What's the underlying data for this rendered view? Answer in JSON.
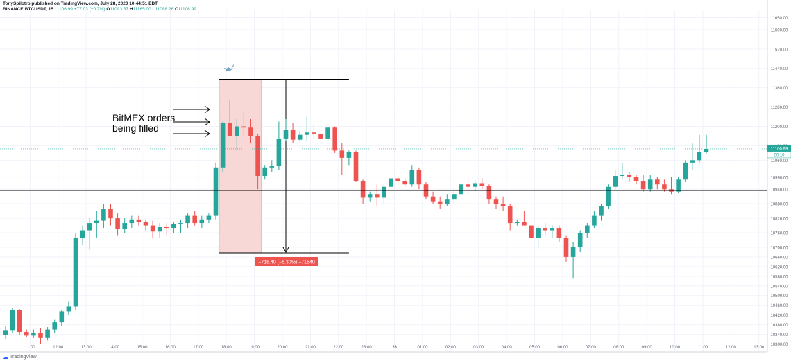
{
  "header": {
    "published": "TonySpilotro published on TradingView.com, July 28, 2020 10:44:51 EDT",
    "symbol": "BINANCE:BTCUSDT, 15",
    "last": "11106.99",
    "change": "+77.03 (+0.7%)",
    "ohlc": {
      "O": "11093.37",
      "H": "11165.00",
      "L": "11088.26",
      "C": "11106.99"
    }
  },
  "annotation": {
    "line1": "BitMEX orders",
    "line2": "being filled"
  },
  "measure_label": "−718.40 (−6.30%) −71840",
  "price_tag": {
    "price": "11106.99",
    "timer": "00:10"
  },
  "footer": {
    "brand": "TradingView"
  },
  "colors": {
    "up": "#26a69a",
    "down": "#ef5350",
    "range_fill": "#f8d7d7",
    "grid": "#f0f3fa",
    "axis_text": "#5d606b"
  },
  "chart_data": {
    "type": "candlestick",
    "ylim": [
      10270,
      11680
    ],
    "y_ticks": [
      10300,
      10340,
      10380,
      10420,
      10460,
      10500,
      10540,
      10580,
      10620,
      10660,
      10700,
      10760,
      10820,
      10880,
      10940,
      10990,
      11060,
      11120,
      11200,
      11280,
      11360,
      11440,
      11520,
      11600,
      11650
    ],
    "x_ticks": [
      {
        "label": "11:00",
        "idx": 3.5
      },
      {
        "label": "12:00",
        "idx": 7.5
      },
      {
        "label": "13:00",
        "idx": 11.5
      },
      {
        "label": "14:00",
        "idx": 15.5
      },
      {
        "label": "15:00",
        "idx": 19.5
      },
      {
        "label": "16:00",
        "idx": 23.5
      },
      {
        "label": "17:00",
        "idx": 27.5
      },
      {
        "label": "18:00",
        "idx": 31.5
      },
      {
        "label": "19:00",
        "idx": 35.5
      },
      {
        "label": "20:00",
        "idx": 39.5
      },
      {
        "label": "21:00",
        "idx": 43.5
      },
      {
        "label": "22:00",
        "idx": 47.5
      },
      {
        "label": "23:00",
        "idx": 51.5
      },
      {
        "label": "28",
        "idx": 55.5
      },
      {
        "label": "01:00",
        "idx": 59.5
      },
      {
        "label": "02:00",
        "idx": 63.5
      },
      {
        "label": "03:00",
        "idx": 67.5
      },
      {
        "label": "04:00",
        "idx": 71.5
      },
      {
        "label": "05:00",
        "idx": 75.5
      },
      {
        "label": "06:00",
        "idx": 79.5
      },
      {
        "label": "07:00",
        "idx": 83.5
      },
      {
        "label": "08:00",
        "idx": 87.5
      },
      {
        "label": "09:00",
        "idx": 91.5
      },
      {
        "label": "10:00",
        "idx": 95.5
      },
      {
        "label": "11:00",
        "idx": 99.5
      },
      {
        "label": "12:00",
        "idx": 103.5
      },
      {
        "label": "13:00",
        "idx": 107.5
      }
    ],
    "horizontal_line": 10935,
    "last_price": 11106.99,
    "measure": {
      "from_idx": 30.5,
      "to_idx": 49,
      "high": 11395,
      "low": 10677,
      "shade_to_idx": 36.5,
      "arrow_idx": 40
    },
    "candles": [
      [
        10338,
        10375,
        10320,
        10355
      ],
      [
        10355,
        10450,
        10345,
        10440
      ],
      [
        10440,
        10445,
        10338,
        10350
      ],
      [
        10350,
        10360,
        10328,
        10335
      ],
      [
        10335,
        10360,
        10325,
        10345
      ],
      [
        10345,
        10365,
        10300,
        10325
      ],
      [
        10325,
        10370,
        10315,
        10360
      ],
      [
        10360,
        10400,
        10345,
        10390
      ],
      [
        10390,
        10440,
        10375,
        10435
      ],
      [
        10435,
        10475,
        10420,
        10455
      ],
      [
        10455,
        10760,
        10440,
        10740
      ],
      [
        10740,
        10790,
        10710,
        10770
      ],
      [
        10770,
        10820,
        10690,
        10800
      ],
      [
        10800,
        10850,
        10740,
        10810
      ],
      [
        10810,
        10880,
        10780,
        10860
      ],
      [
        10860,
        10880,
        10790,
        10820
      ],
      [
        10820,
        10840,
        10750,
        10775
      ],
      [
        10775,
        10820,
        10760,
        10800
      ],
      [
        10800,
        10830,
        10780,
        10815
      ],
      [
        10815,
        10830,
        10790,
        10805
      ],
      [
        10805,
        10815,
        10770,
        10790
      ],
      [
        10790,
        10810,
        10740,
        10765
      ],
      [
        10765,
        10800,
        10740,
        10785
      ],
      [
        10785,
        10800,
        10750,
        10780
      ],
      [
        10780,
        10805,
        10760,
        10795
      ],
      [
        10795,
        10815,
        10760,
        10800
      ],
      [
        10800,
        10840,
        10780,
        10830
      ],
      [
        10830,
        10850,
        10790,
        10800
      ],
      [
        10800,
        10830,
        10780,
        10815
      ],
      [
        10815,
        10840,
        10800,
        10830
      ],
      [
        10830,
        11050,
        10815,
        11030
      ],
      [
        11030,
        11220,
        11010,
        11215
      ],
      [
        11215,
        11310,
        11160,
        11160
      ],
      [
        11160,
        11230,
        11100,
        11200
      ],
      [
        11200,
        11260,
        11160,
        11195
      ],
      [
        11195,
        11230,
        11130,
        11160
      ],
      [
        11160,
        11170,
        10940,
        10995
      ],
      [
        10995,
        11040,
        10980,
        11030
      ],
      [
        11030,
        11060,
        11010,
        11035
      ],
      [
        11035,
        11220,
        11020,
        11150
      ],
      [
        11150,
        11230,
        11140,
        11185
      ],
      [
        11185,
        11215,
        11130,
        11145
      ],
      [
        11145,
        11180,
        11140,
        11165
      ],
      [
        11165,
        11240,
        11140,
        11175
      ],
      [
        11175,
        11210,
        11150,
        11170
      ],
      [
        11170,
        11180,
        11140,
        11150
      ],
      [
        11150,
        11200,
        11140,
        11195
      ],
      [
        11195,
        11200,
        11090,
        11100
      ],
      [
        11100,
        11130,
        11000,
        11070
      ],
      [
        11070,
        11100,
        11040,
        11095
      ],
      [
        11095,
        11100,
        10970,
        10975
      ],
      [
        10975,
        10980,
        10880,
        10905
      ],
      [
        10905,
        10930,
        10890,
        10920
      ],
      [
        10920,
        10960,
        10870,
        10905
      ],
      [
        10905,
        10960,
        10880,
        10950
      ],
      [
        10950,
        11000,
        10940,
        10985
      ],
      [
        10985,
        10995,
        10960,
        10975
      ],
      [
        10975,
        10985,
        10950,
        10960
      ],
      [
        10960,
        11040,
        10950,
        11020
      ],
      [
        11020,
        11030,
        10940,
        10960
      ],
      [
        10960,
        10970,
        10900,
        10910
      ],
      [
        10910,
        10930,
        10880,
        10890
      ],
      [
        10890,
        10910,
        10860,
        10880
      ],
      [
        10880,
        10920,
        10870,
        10900
      ],
      [
        10900,
        10935,
        10880,
        10920
      ],
      [
        10920,
        10975,
        10910,
        10960
      ],
      [
        10960,
        10980,
        10920,
        10950
      ],
      [
        10950,
        10975,
        10930,
        10965
      ],
      [
        10965,
        10985,
        10940,
        10955
      ],
      [
        10955,
        10960,
        10880,
        10900
      ],
      [
        10900,
        10910,
        10860,
        10880
      ],
      [
        10880,
        10910,
        10850,
        10870
      ],
      [
        10870,
        10880,
        10770,
        10800
      ],
      [
        10800,
        10815,
        10790,
        10805
      ],
      [
        10805,
        10850,
        10790,
        10790
      ],
      [
        10790,
        10800,
        10710,
        10740
      ],
      [
        10740,
        10790,
        10690,
        10780
      ],
      [
        10780,
        10800,
        10750,
        10770
      ],
      [
        10770,
        10790,
        10740,
        10780
      ],
      [
        10780,
        10790,
        10720,
        10740
      ],
      [
        10740,
        10750,
        10640,
        10660
      ],
      [
        10660,
        10720,
        10570,
        10700
      ],
      [
        10700,
        10770,
        10680,
        10760
      ],
      [
        10760,
        10800,
        10740,
        10790
      ],
      [
        10790,
        10850,
        10780,
        10830
      ],
      [
        10830,
        10880,
        10810,
        10870
      ],
      [
        10870,
        10960,
        10860,
        10950
      ],
      [
        10950,
        11020,
        10940,
        10995
      ],
      [
        10995,
        11050,
        10980,
        11000
      ],
      [
        11000,
        11010,
        10970,
        10990
      ],
      [
        10990,
        11000,
        10960,
        10975
      ],
      [
        10975,
        11000,
        10930,
        10940
      ],
      [
        10940,
        11000,
        10930,
        10980
      ],
      [
        10980,
        10990,
        10940,
        10960
      ],
      [
        10960,
        10980,
        10930,
        10940
      ],
      [
        10940,
        10990,
        10920,
        10930
      ],
      [
        10930,
        10990,
        10925,
        10980
      ],
      [
        10980,
        11060,
        10970,
        11050
      ],
      [
        11050,
        11130,
        11020,
        11060
      ],
      [
        11060,
        11165,
        11050,
        11093
      ],
      [
        11093.37,
        11165,
        11088.26,
        11106.99
      ]
    ]
  }
}
